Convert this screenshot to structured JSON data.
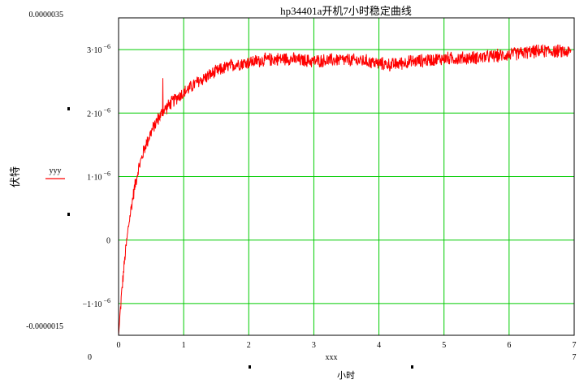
{
  "chart_data": {
    "type": "line",
    "title": "hp34401a开机7小时稳定曲线",
    "xlabel": "小时",
    "xvar_label": "xxx",
    "ylabel": "伏特",
    "legend": {
      "label": "yyy",
      "placement": "left"
    },
    "xlim": [
      0,
      7
    ],
    "ylim": [
      -1.5e-06,
      3.5e-06
    ],
    "xlim_labels": {
      "min": "0",
      "max": "7"
    },
    "ylim_labels": {
      "max": "0.0000035",
      "min": "-0.0000015"
    },
    "xticks": [
      "0",
      "1",
      "2",
      "3",
      "4",
      "5",
      "6",
      "7"
    ],
    "yticks": [
      {
        "value": 3e-06,
        "base": "3·10",
        "exp": "−6"
      },
      {
        "value": 2e-06,
        "base": "2·10",
        "exp": "−6"
      },
      {
        "value": 1e-06,
        "base": "1·10",
        "exp": "−6"
      },
      {
        "value": 0,
        "base": "0",
        "exp": ""
      },
      {
        "value": -1e-06,
        "base": "−1·10",
        "exp": "−6"
      }
    ],
    "grid": true,
    "grid_color": "#00cc00",
    "series": [
      {
        "name": "yyy",
        "color": "#ff0000",
        "x": [
          0,
          0.05,
          0.1,
          0.15,
          0.2,
          0.25,
          0.3,
          0.4,
          0.5,
          0.6,
          0.7,
          0.8,
          0.9,
          1.0,
          1.2,
          1.4,
          1.6,
          1.8,
          2.0,
          2.2,
          2.4,
          2.6,
          2.8,
          3.0,
          3.2,
          3.4,
          3.6,
          3.8,
          4.0,
          4.2,
          4.4,
          4.6,
          4.8,
          5.0,
          5.2,
          5.4,
          5.6,
          5.8,
          6.0,
          6.2,
          6.4,
          6.6,
          6.8,
          6.95
        ],
        "y": [
          -1.5e-06,
          -8e-07,
          -2.5e-07,
          2e-07,
          5.5e-07,
          8.5e-07,
          1.1e-06,
          1.45e-06,
          1.7e-06,
          1.9e-06,
          2.05e-06,
          2.15e-06,
          2.25e-06,
          2.32e-06,
          2.48e-06,
          2.6e-06,
          2.7e-06,
          2.77e-06,
          2.8e-06,
          2.83e-06,
          2.85e-06,
          2.86e-06,
          2.83e-06,
          2.82e-06,
          2.83e-06,
          2.84e-06,
          2.83e-06,
          2.82e-06,
          2.78e-06,
          2.76e-06,
          2.8e-06,
          2.82e-06,
          2.84e-06,
          2.86e-06,
          2.86e-06,
          2.87e-06,
          2.88e-06,
          2.9e-06,
          2.92e-06,
          2.95e-06,
          2.97e-06,
          2.98e-06,
          2.97e-06,
          2.96e-06
        ],
        "noise_amplitude": 1.2e-07,
        "spike": {
          "x": 0.68,
          "y": 2.55e-06
        }
      }
    ]
  }
}
